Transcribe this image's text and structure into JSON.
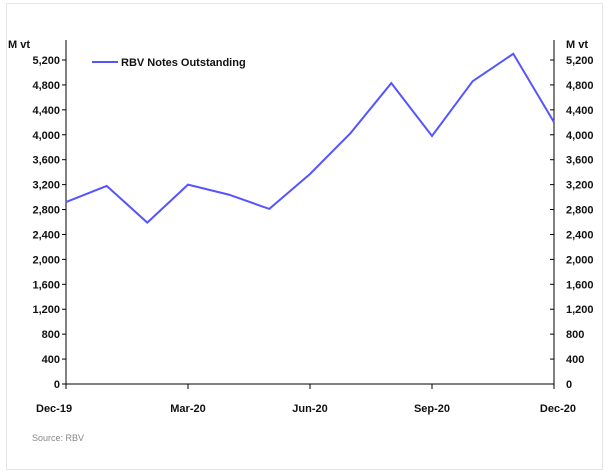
{
  "chart_data": {
    "type": "line",
    "title": "",
    "ylabel_left": "M vt",
    "ylabel_right": "M vt",
    "ylim": [
      0,
      5200
    ],
    "yticks": [
      0,
      400,
      800,
      1200,
      1600,
      2000,
      2400,
      2800,
      3200,
      3600,
      4000,
      4400,
      4800,
      5200
    ],
    "ytick_labels": [
      "0",
      "400",
      "800",
      "1,200",
      "1,600",
      "2,000",
      "2,400",
      "2,800",
      "3,200",
      "3,600",
      "4,000",
      "4,400",
      "4,800",
      "5,200"
    ],
    "x": [
      "Dec-19",
      "Jan-20",
      "Feb-20",
      "Mar-20",
      "Apr-20",
      "May-20",
      "Jun-20",
      "Jul-20",
      "Aug-20",
      "Sep-20",
      "Oct-20",
      "Nov-20",
      "Dec-20"
    ],
    "xtick_labels": [
      "Dec-19",
      "Mar-20",
      "Jun-20",
      "Sep-20",
      "Dec-20"
    ],
    "series": [
      {
        "name": "RBV Notes Outstanding",
        "color": "#5555ff",
        "values": [
          2920,
          3180,
          2590,
          3200,
          3040,
          2810,
          3370,
          4030,
          4830,
          3980,
          4860,
          5300,
          4200
        ]
      }
    ],
    "legend": "top-left",
    "grid": false,
    "source": "Source: RBV"
  }
}
